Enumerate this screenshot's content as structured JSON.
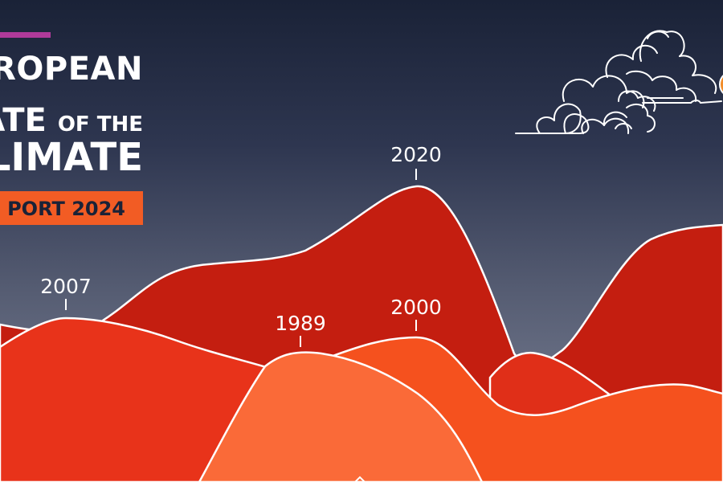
{
  "title": {
    "line1": "ROPEAN",
    "line2_main": "ATE",
    "line2_small": "OF THE",
    "line3": "LIMATE",
    "report": "PORT 2024"
  },
  "years": {
    "y2007": "2007",
    "y2020": "2020",
    "y1989": "1989",
    "y2000": "2000"
  },
  "colors": {
    "accent_bar": "#b03a9a",
    "report_box": "#f25c24",
    "mountain_back": "#c41e10",
    "mountain_mid": "#e8331a",
    "mountain_front": "#f5511e",
    "mountain_light": "#fa6a38"
  },
  "icons": {
    "clouds": "clouds-icon",
    "sun": "sun-icon"
  }
}
